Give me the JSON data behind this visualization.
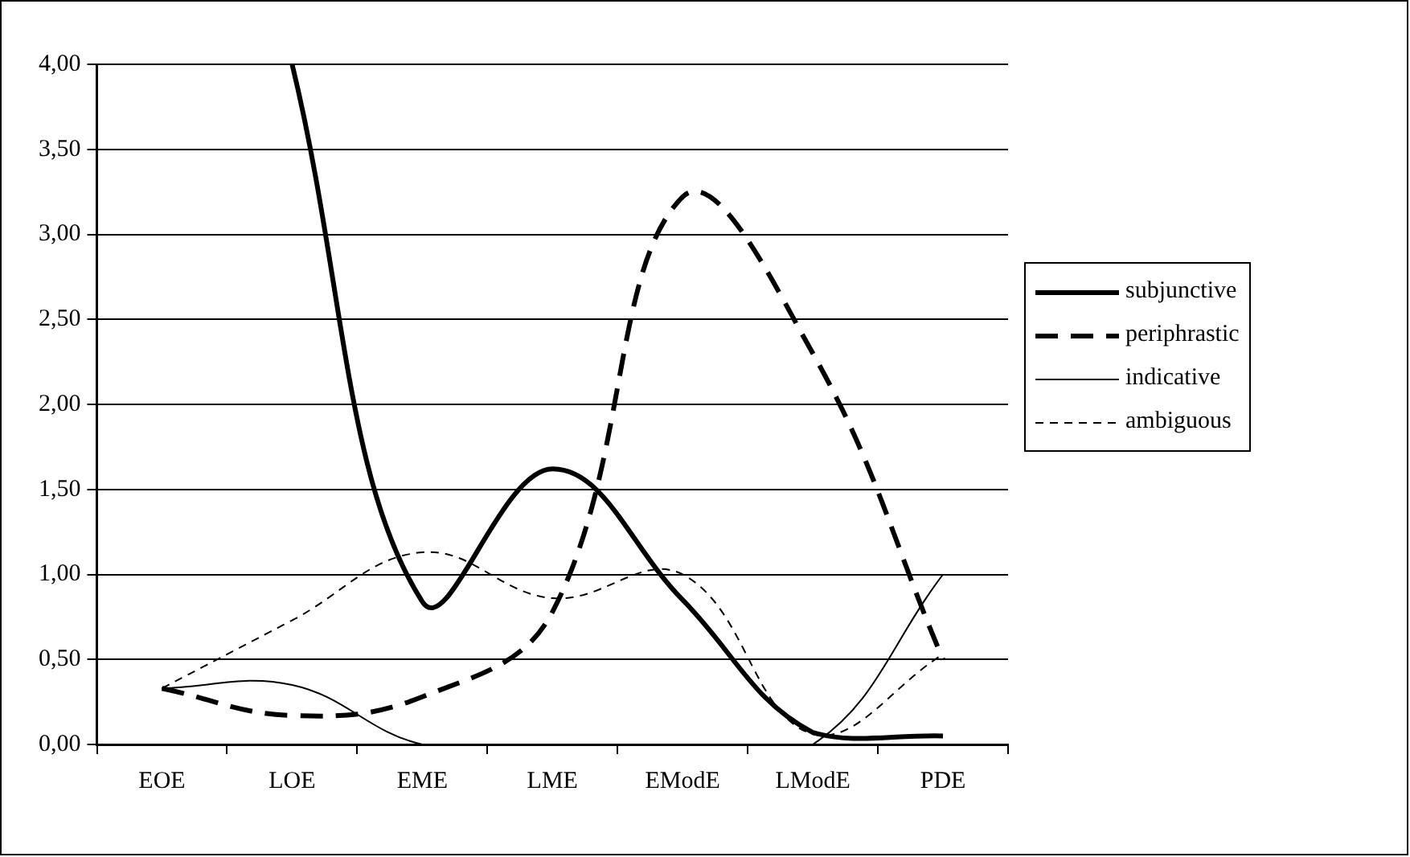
{
  "chart_data": {
    "type": "line",
    "categories": [
      "EOE",
      "LOE",
      "EME",
      "LME",
      "EModE",
      "LModE",
      "PDE"
    ],
    "series": [
      {
        "name": "subjunctive",
        "color": "#000000",
        "line_style": "solid",
        "values": [
          null,
          4.0,
          0.84,
          1.62,
          0.85,
          0.07,
          0.05
        ]
      },
      {
        "name": "periphrastic",
        "color": "#000000",
        "line_style": "dashed",
        "values": [
          0.33,
          0.17,
          0.28,
          0.78,
          3.22,
          2.3,
          0.5
        ]
      },
      {
        "name": "indicative",
        "color": "#000000",
        "line_style": "solid",
        "values": [
          0.33,
          0.35,
          0,
          0,
          0,
          0,
          1.0
        ]
      },
      {
        "name": "ambiguous",
        "color": "#000000",
        "line_style": "dashed",
        "values": [
          0.33,
          0.73,
          1.13,
          0.86,
          1.0,
          0.06,
          0.53
        ]
      }
    ],
    "ylim": [
      0,
      4
    ],
    "yticks": [
      {
        "value": 0,
        "label": "0,00"
      },
      {
        "value": 0.5,
        "label": "0,50"
      },
      {
        "value": 1,
        "label": "1,00"
      },
      {
        "value": 1.5,
        "label": "1,50"
      },
      {
        "value": 2,
        "label": "2,00"
      },
      {
        "value": 2.5,
        "label": "2,50"
      },
      {
        "value": 3,
        "label": "3,00"
      },
      {
        "value": 3.5,
        "label": "3,50"
      },
      {
        "value": 4,
        "label": "4,00"
      }
    ],
    "grid": "y",
    "legend": "right",
    "marker": "none"
  }
}
